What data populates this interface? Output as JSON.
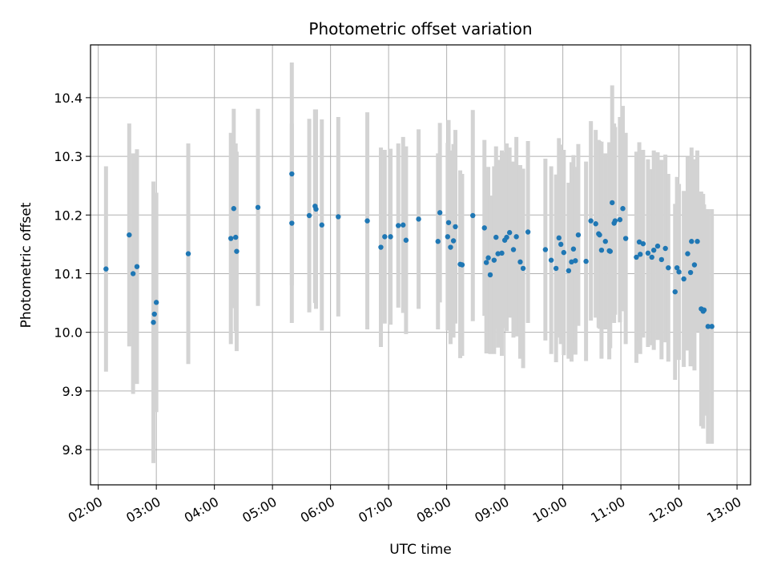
{
  "chart_data": {
    "type": "scatter",
    "title": "Photometric offset variation",
    "xlabel": "UTC time",
    "ylabel": "Photometric offset",
    "x_tick_labels": [
      "02:00",
      "03:00",
      "04:00",
      "05:00",
      "06:00",
      "07:00",
      "08:00",
      "09:00",
      "10:00",
      "11:00",
      "12:00",
      "13:00"
    ],
    "y_tick_labels": [
      "9.8",
      "9.9",
      "10.0",
      "10.1",
      "10.2",
      "10.3",
      "10.4"
    ],
    "xlim": [
      "01:52",
      "13:14"
    ],
    "ylim": [
      9.74,
      10.49
    ],
    "grid": true,
    "colors": {
      "point": "#1f77b4",
      "errorbar": "#d3d3d3",
      "grid": "#b0b0b0"
    },
    "series": [
      {
        "x": [
          "02:08",
          "02:32",
          "02:36",
          "02:40",
          "02:57",
          "02:58",
          "03:00",
          "03:33",
          "04:17",
          "04:20",
          "04:22",
          "04:23",
          "04:45",
          "05:20",
          "05:20",
          "05:38",
          "05:44",
          "05:45",
          "05:51",
          "06:08",
          "06:38",
          "06:52",
          "06:56",
          "07:02",
          "07:10",
          "07:15",
          "07:18",
          "07:31",
          "07:51",
          "07:53",
          "08:01",
          "08:02",
          "08:04",
          "08:07",
          "08:09",
          "08:14",
          "08:16",
          "08:27",
          "08:39",
          "08:41",
          "08:43",
          "08:45",
          "08:49",
          "08:51",
          "08:53",
          "08:57",
          "09:00",
          "09:02",
          "09:05",
          "09:09",
          "09:12",
          "09:16",
          "09:19",
          "09:24",
          "09:42",
          "09:48",
          "09:53",
          "09:56",
          "09:58",
          "10:01",
          "10:06",
          "10:09",
          "10:11",
          "10:13",
          "10:16",
          "10:24",
          "10:29",
          "10:34",
          "10:37",
          "10:38",
          "10:40",
          "10:44",
          "10:48",
          "10:49",
          "10:51",
          "10:53",
          "10:54",
          "10:59",
          "11:02",
          "11:05",
          "11:16",
          "11:19",
          "11:20",
          "11:23",
          "11:28",
          "11:32",
          "11:34",
          "11:38",
          "11:42",
          "11:46",
          "11:49",
          "11:56",
          "11:58",
          "12:00",
          "12:05",
          "12:09",
          "12:12",
          "12:13",
          "12:16",
          "12:19",
          "12:23",
          "12:25",
          "12:26",
          "12:30",
          "12:34"
        ],
        "y": [
          10.108,
          10.166,
          10.1,
          10.112,
          10.017,
          10.031,
          10.051,
          10.134,
          10.16,
          10.211,
          10.162,
          10.138,
          10.213,
          10.27,
          10.186,
          10.199,
          10.215,
          10.21,
          10.183,
          10.197,
          10.19,
          10.145,
          10.163,
          10.163,
          10.182,
          10.183,
          10.157,
          10.193,
          10.155,
          10.204,
          10.163,
          10.187,
          10.145,
          10.156,
          10.18,
          10.116,
          10.115,
          10.199,
          10.178,
          10.119,
          10.127,
          10.098,
          10.123,
          10.162,
          10.134,
          10.135,
          10.157,
          10.162,
          10.17,
          10.141,
          10.163,
          10.12,
          10.109,
          10.171,
          10.141,
          10.123,
          10.109,
          10.161,
          10.15,
          10.136,
          10.105,
          10.12,
          10.142,
          10.122,
          10.166,
          10.121,
          10.19,
          10.185,
          10.168,
          10.166,
          10.14,
          10.155,
          10.139,
          10.138,
          10.221,
          10.186,
          10.19,
          10.192,
          10.211,
          10.16,
          10.128,
          10.154,
          10.133,
          10.151,
          10.135,
          10.128,
          10.14,
          10.147,
          10.124,
          10.143,
          10.11,
          10.069,
          10.11,
          10.103,
          10.091,
          10.134,
          10.102,
          10.155,
          10.115,
          10.155,
          10.04,
          10.036,
          10.038,
          10.01,
          10.01
        ],
        "err": [
          0.175,
          0.19,
          0.205,
          0.2,
          0.24,
          0.15,
          0.187,
          0.188,
          0.18,
          0.17,
          0.16,
          0.17,
          0.168,
          0.19,
          0.17,
          0.165,
          0.165,
          0.17,
          0.18,
          0.17,
          0.185,
          0.17,
          0.148,
          0.15,
          0.14,
          0.15,
          0.16,
          0.153,
          0.15,
          0.153,
          0.16,
          0.175,
          0.165,
          0.165,
          0.165,
          0.16,
          0.155,
          0.18,
          0.15,
          0.155,
          0.155,
          0.135,
          0.16,
          0.155,
          0.16,
          0.175,
          0.15,
          0.16,
          0.145,
          0.15,
          0.17,
          0.165,
          0.17,
          0.155,
          0.155,
          0.16,
          0.16,
          0.17,
          0.17,
          0.175,
          0.15,
          0.17,
          0.16,
          0.16,
          0.155,
          0.17,
          0.17,
          0.16,
          0.16,
          0.16,
          0.185,
          0.15,
          0.185,
          0.165,
          0.2,
          0.17,
          0.16,
          0.175,
          0.175,
          0.18,
          0.18,
          0.17,
          0.17,
          0.16,
          0.16,
          0.15,
          0.17,
          0.16,
          0.17,
          0.16,
          0.16,
          0.15,
          0.155,
          0.15,
          0.15,
          0.165,
          0.16,
          0.16,
          0.18,
          0.155,
          0.2,
          0.2,
          0.18,
          0.2,
          0.2
        ]
      }
    ]
  }
}
